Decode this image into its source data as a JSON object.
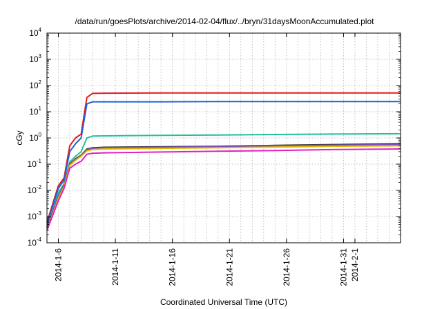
{
  "chart_data": {
    "type": "line",
    "title": "/data/run/goesPlots/archive/2014-02-04/flux/../bryn/31daysMoonAccumulated.plot",
    "xlabel": "Coordinated Universal Time (UTC)",
    "ylabel": "cGy",
    "yscale": "log",
    "ylim": [
      0.0001,
      10000
    ],
    "xlim": [
      "2014-01-05",
      "2014-02-05"
    ],
    "grid": true,
    "y_ticks": [
      {
        "base": "10",
        "exp": "-4",
        "value": 0.0001
      },
      {
        "base": "10",
        "exp": "-3",
        "value": 0.001
      },
      {
        "base": "10",
        "exp": "-2",
        "value": 0.01
      },
      {
        "base": "10",
        "exp": "-1",
        "value": 0.1
      },
      {
        "base": "10",
        "exp": "0",
        "value": 1
      },
      {
        "base": "10",
        "exp": "1",
        "value": 10
      },
      {
        "base": "10",
        "exp": "2",
        "value": 100
      },
      {
        "base": "10",
        "exp": "3",
        "value": 1000
      },
      {
        "base": "10",
        "exp": "4",
        "value": 10000
      }
    ],
    "x_ticks": [
      {
        "label": "2014-1-6",
        "date": "2014-01-06"
      },
      {
        "label": "2014-1-11",
        "date": "2014-01-11"
      },
      {
        "label": "2014-1-16",
        "date": "2014-01-16"
      },
      {
        "label": "2014-1-21",
        "date": "2014-01-21"
      },
      {
        "label": "2014-1-26",
        "date": "2014-01-26"
      },
      {
        "label": "2014-1-31",
        "date": "2014-01-31"
      },
      {
        "label": "2014-2-1",
        "date": "2014-02-01"
      }
    ],
    "x_minor_grid_dates": [
      "2014-01-07",
      "2014-01-08",
      "2014-01-09",
      "2014-01-10",
      "2014-01-12",
      "2014-01-13",
      "2014-01-14",
      "2014-01-15",
      "2014-01-17",
      "2014-01-18",
      "2014-01-19",
      "2014-01-20",
      "2014-01-22",
      "2014-01-23",
      "2014-01-24",
      "2014-01-25",
      "2014-01-27",
      "2014-01-28",
      "2014-01-29",
      "2014-01-30",
      "2014-02-02",
      "2014-02-03",
      "2014-02-04"
    ],
    "x": [
      "2014-01-05",
      "2014-01-06",
      "2014-01-06 12:00",
      "2014-01-07",
      "2014-01-07 12:00",
      "2014-01-08",
      "2014-01-08 12:00",
      "2014-01-09",
      "2014-01-10",
      "2014-01-15",
      "2014-01-20",
      "2014-01-25",
      "2014-01-30",
      "2014-02-05"
    ],
    "series": [
      {
        "color": "#e41a1c",
        "values": [
          0.0006,
          0.015,
          0.03,
          0.5,
          1.0,
          1.4,
          35,
          50,
          51,
          52,
          52,
          52,
          52,
          52
        ]
      },
      {
        "color": "#1f5fd6",
        "values": [
          0.0005,
          0.012,
          0.025,
          0.3,
          0.6,
          1.0,
          20,
          24,
          24,
          24,
          24.5,
          24.5,
          24.5,
          24.5
        ]
      },
      {
        "color": "#1fbf9a",
        "values": [
          0.0004,
          0.008,
          0.018,
          0.12,
          0.2,
          0.3,
          1.0,
          1.18,
          1.2,
          1.25,
          1.3,
          1.35,
          1.4,
          1.45
        ]
      },
      {
        "color": "#333333",
        "values": [
          0.0004,
          0.006,
          0.016,
          0.1,
          0.16,
          0.22,
          0.38,
          0.42,
          0.44,
          0.46,
          0.48,
          0.52,
          0.56,
          0.6
        ]
      },
      {
        "color": "#7a4fb8",
        "values": [
          0.0004,
          0.006,
          0.015,
          0.095,
          0.15,
          0.21,
          0.36,
          0.4,
          0.42,
          0.44,
          0.46,
          0.5,
          0.53,
          0.56
        ]
      },
      {
        "color": "#e6b800",
        "values": [
          0.0003,
          0.005,
          0.014,
          0.09,
          0.14,
          0.2,
          0.32,
          0.36,
          0.38,
          0.4,
          0.42,
          0.45,
          0.48,
          0.5
        ]
      },
      {
        "color": "#e020c0",
        "values": [
          0.0003,
          0.004,
          0.012,
          0.07,
          0.1,
          0.13,
          0.24,
          0.26,
          0.27,
          0.29,
          0.31,
          0.33,
          0.36,
          0.38
        ]
      }
    ]
  }
}
